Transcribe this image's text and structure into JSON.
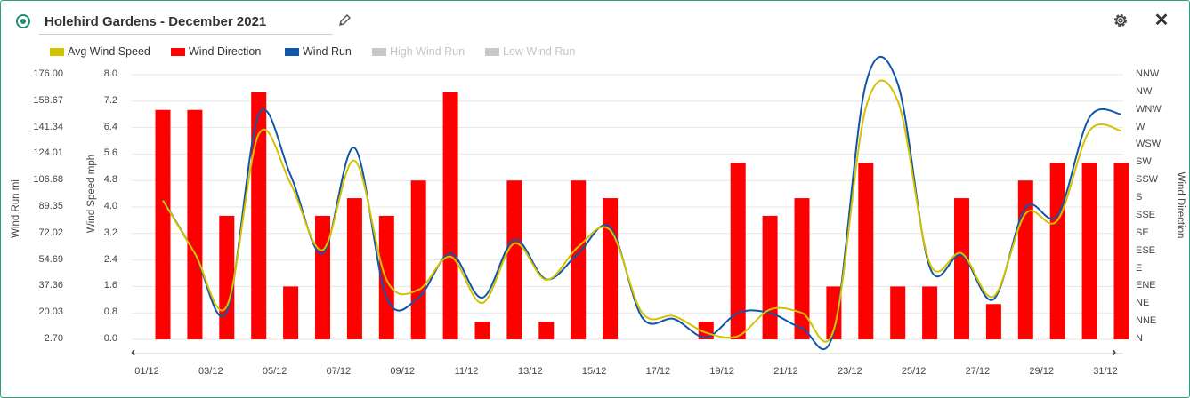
{
  "header": {
    "title": "Holehird Gardens - December 2021"
  },
  "legend": [
    {
      "label": "Avg Wind Speed",
      "color": "#d4c200",
      "active": true
    },
    {
      "label": "Wind Direction",
      "color": "#ff0000",
      "active": true
    },
    {
      "label": "Wind Run",
      "color": "#0f56a8",
      "active": true
    },
    {
      "label": "High Wind Run",
      "color": "#c8c8c8",
      "active": false
    },
    {
      "label": "Low Wind Run",
      "color": "#c8c8c8",
      "active": false
    }
  ],
  "chart_data": {
    "type": "bar+line",
    "axes": {
      "wind_run": {
        "title": "Wind Run mi",
        "ticks": [
          "176.00",
          "158.67",
          "141.34",
          "124.01",
          "106.68",
          "89.35",
          "72.02",
          "54.69",
          "37.36",
          "20.03",
          "2.70"
        ],
        "range": [
          2.7,
          176.0
        ]
      },
      "wind_speed": {
        "title": "Wind Speed mph",
        "ticks": [
          "8.0",
          "7.2",
          "6.4",
          "5.6",
          "4.8",
          "4.0",
          "3.2",
          "2.4",
          "1.6",
          "0.8",
          "0.0"
        ],
        "range": [
          0,
          8
        ]
      },
      "wind_direction": {
        "title": "Wind Direction",
        "ticks": [
          "NNW",
          "NW",
          "WNW",
          "W",
          "WSW",
          "SW",
          "SSW",
          "S",
          "SSE",
          "SE",
          "ESE",
          "E",
          "ENE",
          "NE",
          "NNE",
          "N"
        ]
      }
    },
    "x_ticks": [
      "01/12",
      "03/12",
      "05/12",
      "07/12",
      "09/12",
      "11/12",
      "13/12",
      "15/12",
      "17/12",
      "19/12",
      "21/12",
      "23/12",
      "25/12",
      "27/12",
      "29/12",
      "31/12"
    ],
    "days": [
      1,
      2,
      3,
      4,
      5,
      6,
      7,
      8,
      9,
      10,
      11,
      12,
      13,
      14,
      15,
      16,
      17,
      18,
      19,
      20,
      21,
      22,
      23,
      24,
      25,
      26,
      27,
      28,
      29,
      30,
      31
    ],
    "series": [
      {
        "name": "Wind Direction",
        "unit": "compass index (0=N)",
        "values": [
          13,
          13,
          7,
          14,
          3,
          7,
          8,
          7,
          9,
          14,
          1,
          9,
          1,
          9,
          8,
          null,
          null,
          1,
          10,
          7,
          8,
          3,
          10,
          3,
          3,
          8,
          2,
          9,
          10,
          10,
          10
        ]
      },
      {
        "name": "Wind Run",
        "unit": "mi",
        "values": [
          94,
          59,
          21,
          150,
          110,
          59,
          128,
          30,
          30,
          59,
          30,
          68,
          42,
          59,
          76,
          17,
          16,
          4,
          20,
          20,
          10,
          8,
          170,
          170,
          50,
          58,
          29,
          89,
          84,
          148,
          150
        ]
      },
      {
        "name": "Avg Wind Speed",
        "unit": "mph",
        "values": [
          4.2,
          2.6,
          1.0,
          6.2,
          4.7,
          2.7,
          5.4,
          1.8,
          1.5,
          2.5,
          1.1,
          2.9,
          1.8,
          2.8,
          3.3,
          0.8,
          0.7,
          0.2,
          0.1,
          0.9,
          0.8,
          0.3,
          7.0,
          7.2,
          2.3,
          2.6,
          1.3,
          3.8,
          3.6,
          6.3,
          6.3
        ]
      }
    ]
  }
}
